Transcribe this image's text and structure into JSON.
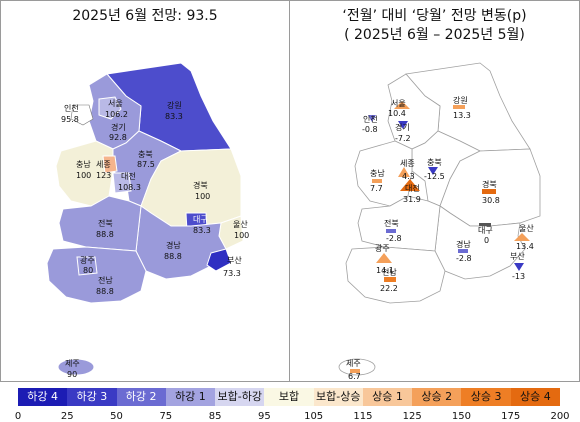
{
  "left_panel": {
    "title": "2025년 6월 전망: 93.5",
    "regions": [
      {
        "name": "서울",
        "value": "106.2",
        "color": "#b9b9e6"
      },
      {
        "name": "인천",
        "value": "95.8",
        "color": "#ffffff"
      },
      {
        "name": "경기",
        "value": "92.8",
        "color": "#9a9ada"
      },
      {
        "name": "강원",
        "value": "83.3",
        "color": "#4d4dcc"
      },
      {
        "name": "충북",
        "value": "87.5",
        "color": "#9a9ada"
      },
      {
        "name": "세종",
        "value": "123",
        "color": "#f5b48c"
      },
      {
        "name": "충남",
        "value": "100",
        "color": "#f3f0d8"
      },
      {
        "name": "대전",
        "value": "108.3",
        "color": "#b9b9e6"
      },
      {
        "name": "경북",
        "value": "100",
        "color": "#f3f0d8"
      },
      {
        "name": "대구",
        "value": "83.3",
        "color": "#4d4dcc"
      },
      {
        "name": "울산",
        "value": "100",
        "color": "#f3f0d8"
      },
      {
        "name": "전북",
        "value": "88.8",
        "color": "#9a9ada"
      },
      {
        "name": "광주",
        "value": "80",
        "color": "#9a9ada"
      },
      {
        "name": "경남",
        "value": "88.8",
        "color": "#9a9ada"
      },
      {
        "name": "부산",
        "value": "73.3",
        "color": "#2f2fc2"
      },
      {
        "name": "전남",
        "value": "88.8",
        "color": "#9a9ada"
      },
      {
        "name": "제주",
        "value": "90",
        "color": "#9a9ada"
      }
    ]
  },
  "right_panel": {
    "title_line1": "‘전월’ 대비 ‘당월’ 전망 변동(p)",
    "title_line2": "( 2025년 6월 –   2025년 5월)",
    "regions": [
      {
        "name": "서울",
        "value": "10.4"
      },
      {
        "name": "인천",
        "value": "-0.8"
      },
      {
        "name": "경기",
        "value": "-7.2"
      },
      {
        "name": "강원",
        "value": "13.3"
      },
      {
        "name": "세종",
        "value": "4.3"
      },
      {
        "name": "충북",
        "value": "-12.5"
      },
      {
        "name": "충남",
        "value": "7.7"
      },
      {
        "name": "대전",
        "value": "31.9"
      },
      {
        "name": "경북",
        "value": "30.8"
      },
      {
        "name": "전북",
        "value": "-2.8"
      },
      {
        "name": "대구",
        "value": "0"
      },
      {
        "name": "울산",
        "value": "13.4"
      },
      {
        "name": "광주",
        "value": "14.1"
      },
      {
        "name": "경남",
        "value": "-2.8"
      },
      {
        "name": "부산",
        "value": "-13"
      },
      {
        "name": "전남",
        "value": "22.2"
      },
      {
        "name": "제주",
        "value": "6.7"
      }
    ]
  },
  "legend": {
    "labels": [
      "하강 4",
      "하강 3",
      "하강 2",
      "하강 1",
      "보합-하강",
      "보합",
      "보합-상승",
      "상승 1",
      "상승 2",
      "상승 3",
      "상승 4"
    ],
    "colors": [
      "#1c1cb4",
      "#3a3ac4",
      "#6b6bd2",
      "#a3a3e0",
      "#d6d6f0",
      "#faf8e4",
      "#fbe7cc",
      "#f8c79a",
      "#f4a05a",
      "#ee7e25",
      "#e46a10"
    ],
    "ticks": [
      "0",
      "25",
      "50",
      "75",
      "85",
      "95",
      "105",
      "115",
      "125",
      "150",
      "175",
      "200"
    ]
  }
}
